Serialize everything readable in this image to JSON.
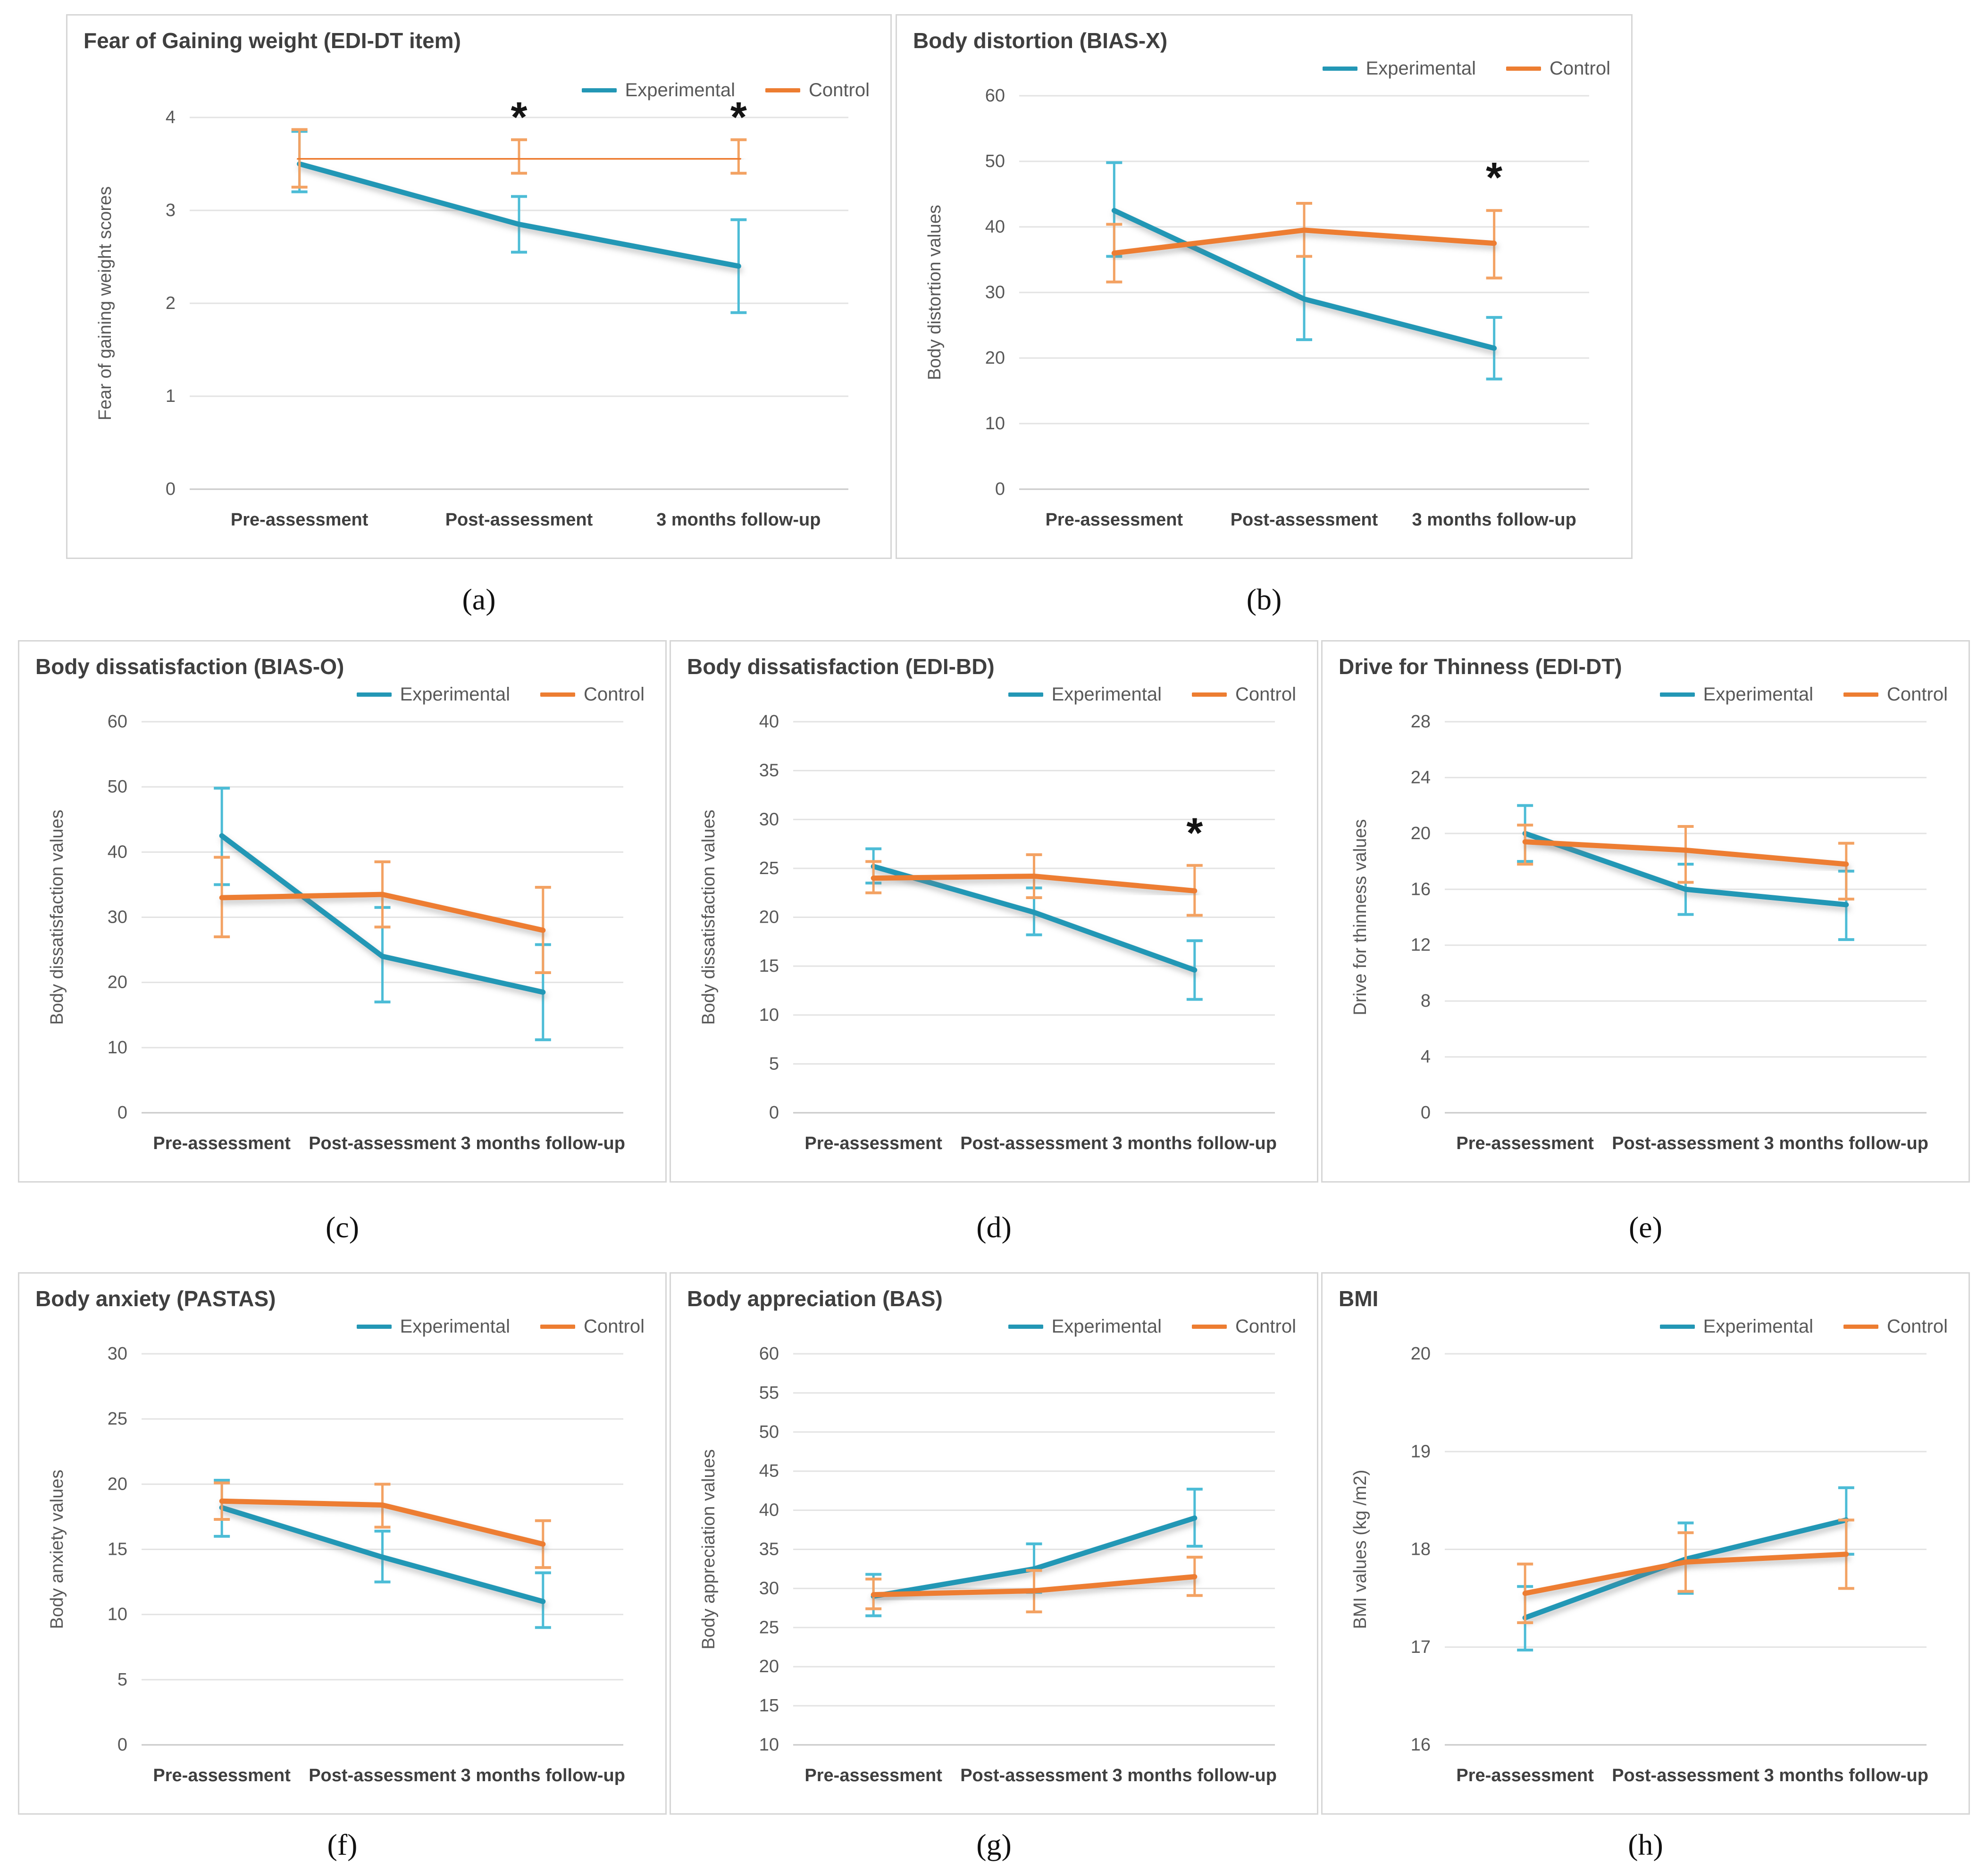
{
  "colors": {
    "experimental": "#2397b5",
    "experimental_error": "#4cbcd6",
    "control": "#ed7d31",
    "control_error": "#f3a263",
    "grid": "#e3e3e3",
    "baseline": "#c9c9c9",
    "title_text": "#3f3f3f",
    "axis_text": "#595959"
  },
  "chart_data": [
    {
      "id": "a",
      "caption": "(a)",
      "type": "line",
      "title": "Fear of Gaining weight (EDI-DT item)",
      "xlabel": "",
      "ylabel": "Fear of gaining weight  scores",
      "ylim": [
        0,
        4
      ],
      "yticks": [
        0,
        1,
        2,
        3,
        4
      ],
      "grid": true,
      "legend_position": "top-right",
      "categories": [
        "Pre-assessment",
        "Post-assessment",
        "3 months follow-up"
      ],
      "series": [
        {
          "name": "Experimental",
          "color": "#2397b5",
          "err_color": "#4cbcd6",
          "values": [
            3.5,
            2.85,
            2.4
          ],
          "err": [
            [
              3.2,
              3.85
            ],
            [
              2.55,
              3.15
            ],
            [
              1.9,
              2.9
            ]
          ]
        },
        {
          "name": "Control",
          "color": "#ed7d31",
          "err_color": "#f3a263",
          "values": [
            3.55,
            3.56,
            3.56
          ],
          "err": [
            [
              3.25,
              3.87
            ],
            [
              3.4,
              3.76
            ],
            [
              3.4,
              3.76
            ]
          ]
        }
      ],
      "annotations": [
        {
          "x": 1,
          "y": 4.0,
          "text": "*"
        },
        {
          "x": 2,
          "y": 4.0,
          "text": "*"
        }
      ]
    },
    {
      "id": "b",
      "caption": "(b)",
      "type": "line",
      "title": "Body distortion (BIAS-X)",
      "xlabel": "",
      "ylabel": "Body distortion values",
      "ylim": [
        0,
        60
      ],
      "yticks": [
        0,
        10,
        20,
        30,
        40,
        50,
        60
      ],
      "grid": true,
      "legend_position": "top-right",
      "categories": [
        "Pre-assessment",
        "Post-assessment",
        "3 months follow-up"
      ],
      "series": [
        {
          "name": "Experimental",
          "color": "#2397b5",
          "err_color": "#4cbcd6",
          "values": [
            42.5,
            29,
            21.5
          ],
          "err": [
            [
              35.5,
              49.8
            ],
            [
              22.8,
              35.5
            ],
            [
              16.8,
              26.2
            ]
          ]
        },
        {
          "name": "Control",
          "color": "#ed7d31",
          "err_color": "#f3a263",
          "values": [
            36,
            39.5,
            37.5
          ],
          "err": [
            [
              31.6,
              40.4
            ],
            [
              35.5,
              43.6
            ],
            [
              32.2,
              42.5
            ]
          ]
        }
      ],
      "annotations": [
        {
          "x": 2,
          "y": 47.5,
          "text": "*"
        }
      ]
    },
    {
      "id": "c",
      "caption": "(c)",
      "type": "line",
      "title": "Body dissatisfaction (BIAS-O)",
      "xlabel": "",
      "ylabel": "Body dissatisfaction values",
      "ylim": [
        0,
        60
      ],
      "yticks": [
        0,
        10,
        20,
        30,
        40,
        50,
        60
      ],
      "grid": true,
      "legend_position": "top-right",
      "categories": [
        "Pre-assessment",
        "Post-assessment",
        "3 months follow-up"
      ],
      "series": [
        {
          "name": "Experimental",
          "color": "#2397b5",
          "err_color": "#4cbcd6",
          "values": [
            42.5,
            24,
            18.5
          ],
          "err": [
            [
              35,
              49.8
            ],
            [
              17,
              31.5
            ],
            [
              11.2,
              25.8
            ]
          ]
        },
        {
          "name": "Control",
          "color": "#ed7d31",
          "err_color": "#f3a263",
          "values": [
            33,
            33.5,
            28
          ],
          "err": [
            [
              27,
              39.2
            ],
            [
              28.5,
              38.5
            ],
            [
              21.5,
              34.6
            ]
          ]
        }
      ],
      "annotations": []
    },
    {
      "id": "d",
      "caption": "(d)",
      "type": "line",
      "title": "Body dissatisfaction (EDI-BD)",
      "xlabel": "",
      "ylabel": "Body dissatisfaction values",
      "ylim": [
        0,
        40
      ],
      "yticks": [
        0,
        5,
        10,
        15,
        20,
        25,
        30,
        35,
        40
      ],
      "grid": true,
      "legend_position": "top-right",
      "categories": [
        "Pre-assessment",
        "Post-assessment",
        "3 months follow-up"
      ],
      "series": [
        {
          "name": "Experimental",
          "color": "#2397b5",
          "err_color": "#4cbcd6",
          "values": [
            25.2,
            20.5,
            14.6
          ],
          "err": [
            [
              23.5,
              27
            ],
            [
              18.2,
              23
            ],
            [
              11.6,
              17.6
            ]
          ]
        },
        {
          "name": "Control",
          "color": "#ed7d31",
          "err_color": "#f3a263",
          "values": [
            24,
            24.2,
            22.7
          ],
          "err": [
            [
              22.5,
              25.7
            ],
            [
              22,
              26.4
            ],
            [
              20.2,
              25.3
            ]
          ]
        }
      ],
      "annotations": [
        {
          "x": 2,
          "y": 28.6,
          "text": "*"
        }
      ]
    },
    {
      "id": "e",
      "caption": "(e)",
      "type": "line",
      "title": "Drive for Thinness (EDI-DT)",
      "xlabel": "",
      "ylabel": "Drive for thinness values",
      "ylim": [
        0,
        28
      ],
      "yticks": [
        0,
        4,
        8,
        12,
        16,
        20,
        24,
        28
      ],
      "grid": true,
      "legend_position": "top-right",
      "categories": [
        "Pre-assessment",
        "Post-assessment",
        "3 months follow-up"
      ],
      "series": [
        {
          "name": "Experimental",
          "color": "#2397b5",
          "err_color": "#4cbcd6",
          "values": [
            20,
            16,
            14.9
          ],
          "err": [
            [
              18,
              22
            ],
            [
              14.2,
              17.8
            ],
            [
              12.4,
              17.3
            ]
          ]
        },
        {
          "name": "Control",
          "color": "#ed7d31",
          "err_color": "#f3a263",
          "values": [
            19.4,
            18.8,
            17.8
          ],
          "err": [
            [
              17.8,
              20.6
            ],
            [
              16.5,
              20.5
            ],
            [
              15.3,
              19.3
            ]
          ]
        }
      ],
      "annotations": []
    },
    {
      "id": "f",
      "caption": "(f)",
      "type": "line",
      "title": "Body anxiety (PASTAS)",
      "xlabel": "",
      "ylabel": "Body anxiety values",
      "ylim": [
        0,
        30
      ],
      "yticks": [
        0,
        5,
        10,
        15,
        20,
        25,
        30
      ],
      "grid": true,
      "legend_position": "top-right",
      "categories": [
        "Pre-assessment",
        "Post-assessment",
        "3 months follow-up"
      ],
      "series": [
        {
          "name": "Experimental",
          "color": "#2397b5",
          "err_color": "#4cbcd6",
          "values": [
            18.2,
            14.4,
            11
          ],
          "err": [
            [
              16,
              20.3
            ],
            [
              12.5,
              16.4
            ],
            [
              9,
              13.2
            ]
          ]
        },
        {
          "name": "Control",
          "color": "#ed7d31",
          "err_color": "#f3a263",
          "values": [
            18.7,
            18.4,
            15.4
          ],
          "err": [
            [
              17.3,
              20.1
            ],
            [
              16.7,
              20
            ],
            [
              13.6,
              17.2
            ]
          ]
        }
      ],
      "annotations": []
    },
    {
      "id": "g",
      "caption": "(g)",
      "type": "line",
      "title": "Body appreciation (BAS)",
      "xlabel": "",
      "ylabel": "Body appreciation values",
      "ylim": [
        10,
        60
      ],
      "yticks": [
        10,
        15,
        20,
        25,
        30,
        35,
        40,
        45,
        50,
        55,
        60
      ],
      "grid": true,
      "legend_position": "top-right",
      "categories": [
        "Pre-assessment",
        "Post-assessment",
        "3 months follow-up"
      ],
      "series": [
        {
          "name": "Experimental",
          "color": "#2397b5",
          "err_color": "#4cbcd6",
          "values": [
            29,
            32.5,
            39
          ],
          "err": [
            [
              26.5,
              31.8
            ],
            [
              29.5,
              35.7
            ],
            [
              35.4,
              42.7
            ]
          ]
        },
        {
          "name": "Control",
          "color": "#ed7d31",
          "err_color": "#f3a263",
          "values": [
            29.2,
            29.7,
            31.5
          ],
          "err": [
            [
              27.4,
              31.2
            ],
            [
              27,
              32.3
            ],
            [
              29.1,
              34
            ]
          ]
        }
      ],
      "annotations": []
    },
    {
      "id": "h",
      "caption": "(h)",
      "type": "line",
      "title": "BMI",
      "xlabel": "",
      "ylabel": "BMI values (kg /m2)",
      "ylim": [
        16,
        20
      ],
      "yticks": [
        16,
        17,
        18,
        19,
        20
      ],
      "grid": true,
      "legend_position": "top-right",
      "categories": [
        "Pre-assessment",
        "Post-assessment",
        "3 months follow-up"
      ],
      "series": [
        {
          "name": "Experimental",
          "color": "#2397b5",
          "err_color": "#4cbcd6",
          "values": [
            17.3,
            17.9,
            18.3
          ],
          "err": [
            [
              16.97,
              17.62
            ],
            [
              17.55,
              18.27
            ],
            [
              17.95,
              18.63
            ]
          ]
        },
        {
          "name": "Control",
          "color": "#ed7d31",
          "err_color": "#f3a263",
          "values": [
            17.55,
            17.87,
            17.95
          ],
          "err": [
            [
              17.25,
              17.85
            ],
            [
              17.57,
              18.17
            ],
            [
              17.6,
              18.3
            ]
          ]
        }
      ],
      "annotations": []
    }
  ]
}
